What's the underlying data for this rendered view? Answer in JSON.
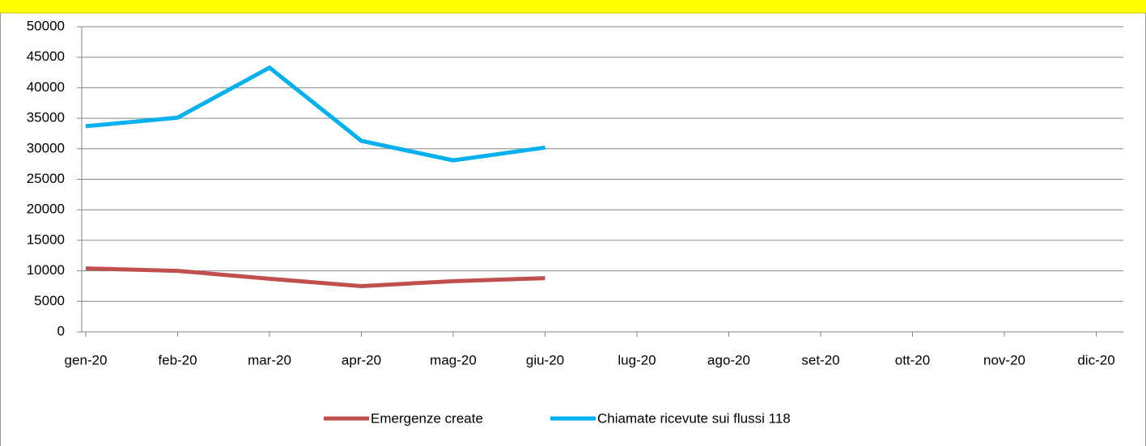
{
  "chart_data": {
    "type": "line",
    "categories": [
      "gen-20",
      "feb-20",
      "mar-20",
      "apr-20",
      "mag-20",
      "giu-20",
      "lug-20",
      "ago-20",
      "set-20",
      "ott-20",
      "nov-20",
      "dic-20"
    ],
    "series": [
      {
        "name": "Emergenze create",
        "color": "#c0504d",
        "values": [
          10400,
          10000,
          8700,
          7500,
          8300,
          8800,
          null,
          null,
          null,
          null,
          null,
          null
        ]
      },
      {
        "name": "Chiamate ricevute sui flussi 118",
        "color": "#00b0f0",
        "values": [
          33700,
          35100,
          43300,
          31300,
          28100,
          30200,
          null,
          null,
          null,
          null,
          null,
          null
        ]
      }
    ],
    "ylim": [
      0,
      50000
    ],
    "yticks": [
      0,
      5000,
      10000,
      15000,
      20000,
      25000,
      30000,
      35000,
      40000,
      45000,
      50000
    ],
    "grid": true,
    "legend": "bottom"
  }
}
